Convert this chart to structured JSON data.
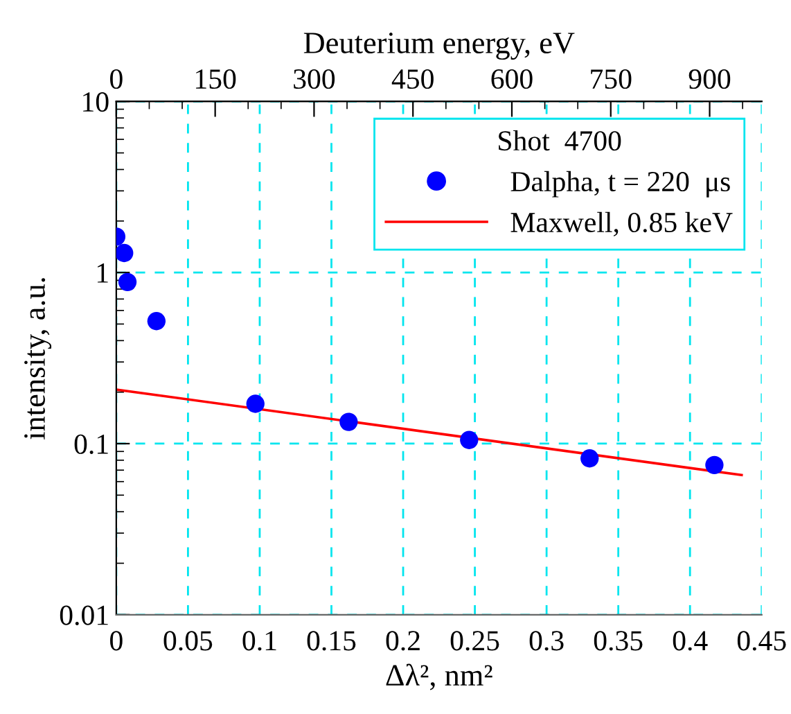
{
  "chart_data": {
    "type": "scatter",
    "xlabel": "Δλ², nm²",
    "ylabel": "intensity, a.u.",
    "x2label": "Deuterium energy, eV",
    "legend_title": "Shot  4700",
    "series": [
      {
        "name": "Dalpha, t = 220  μs",
        "color": "#0000ff",
        "marker": "circle",
        "x": [
          0.0,
          0.0055,
          0.0078,
          0.028,
          0.097,
          0.162,
          0.246,
          0.33,
          0.417
        ],
        "values": [
          1.62,
          1.3,
          0.88,
          0.52,
          0.171,
          0.134,
          0.105,
          0.082,
          0.075
        ]
      },
      {
        "name": "Maxwell, 0.85 keV",
        "type": "line",
        "color": "#ff0000",
        "line_style": "solid",
        "x": [
          0.0,
          0.436
        ],
        "values": [
          0.207,
          0.0655
        ]
      }
    ],
    "log": "y",
    "xlim": [
      0,
      0.45
    ],
    "xticks": [
      0,
      0.05,
      0.1,
      0.15,
      0.2,
      0.25,
      0.3,
      0.35,
      0.4,
      0.45
    ],
    "ylim": [
      0.01,
      10
    ],
    "yticks": [
      0.01,
      0.1,
      1,
      10
    ],
    "x2lim": [
      0,
      979
    ],
    "x2ticks": [
      0,
      150,
      300,
      450,
      600,
      750,
      900
    ],
    "grid": true,
    "legend": "top right"
  }
}
